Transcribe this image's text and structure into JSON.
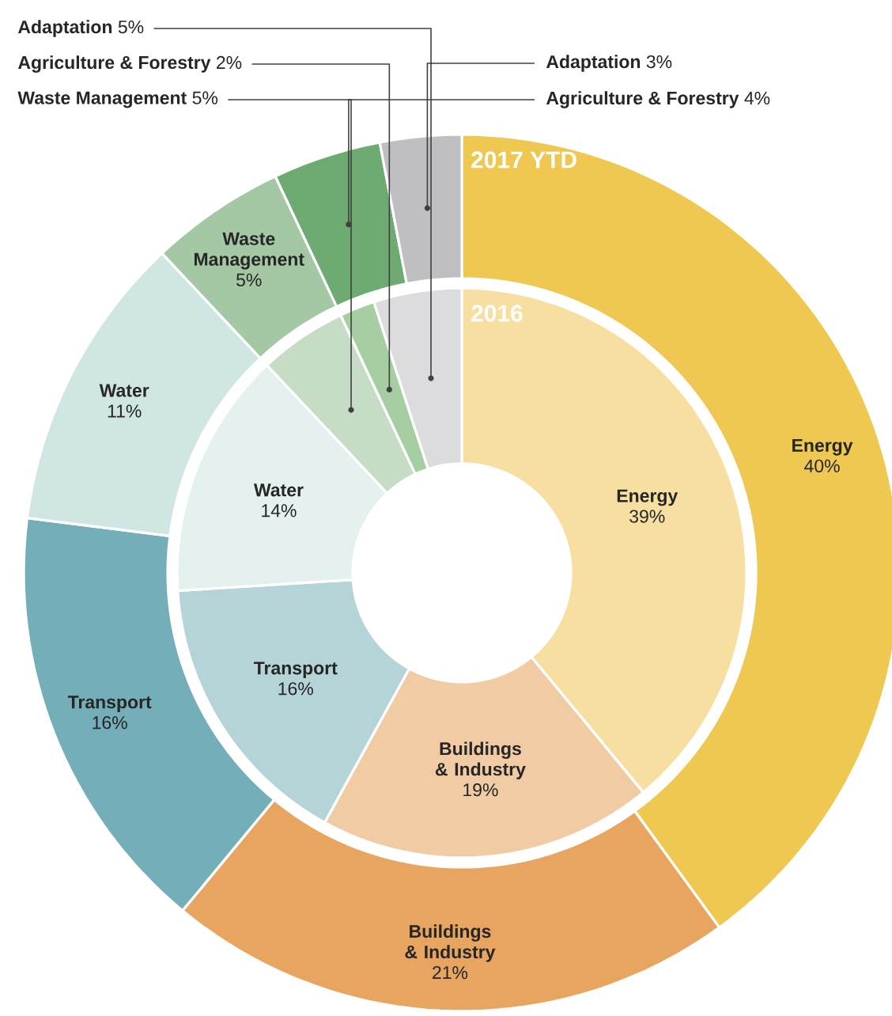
{
  "chart_data": {
    "type": "donut",
    "categories": [
      "Energy",
      "Buildings & Industry",
      "Transport",
      "Water",
      "Waste Management",
      "Agriculture & Forestry",
      "Adaptation"
    ],
    "series": [
      {
        "name": "2017 YTD",
        "values": [
          40,
          21,
          16,
          11,
          5,
          4,
          3
        ],
        "value_labels": [
          "40%",
          "21%",
          "16%",
          "11%",
          "5%",
          "4%",
          "3%"
        ],
        "colors": [
          "#efc852",
          "#e8a560",
          "#74afb9",
          "#cfe6e3",
          "#a5c8a4",
          "#6dab73",
          "#bfbfc3"
        ]
      },
      {
        "name": "2016",
        "values": [
          39,
          19,
          16,
          14,
          5,
          2,
          5
        ],
        "value_labels": [
          "39%",
          "19%",
          "16%",
          "14%",
          "5%",
          "2%",
          "5%"
        ],
        "colors": [
          "#f6dfa0",
          "#f0cba3",
          "#b4d4d7",
          "#e4f1ef",
          "#c7dcc4",
          "#a6cea2",
          "#dcdcdf"
        ]
      }
    ]
  }
}
